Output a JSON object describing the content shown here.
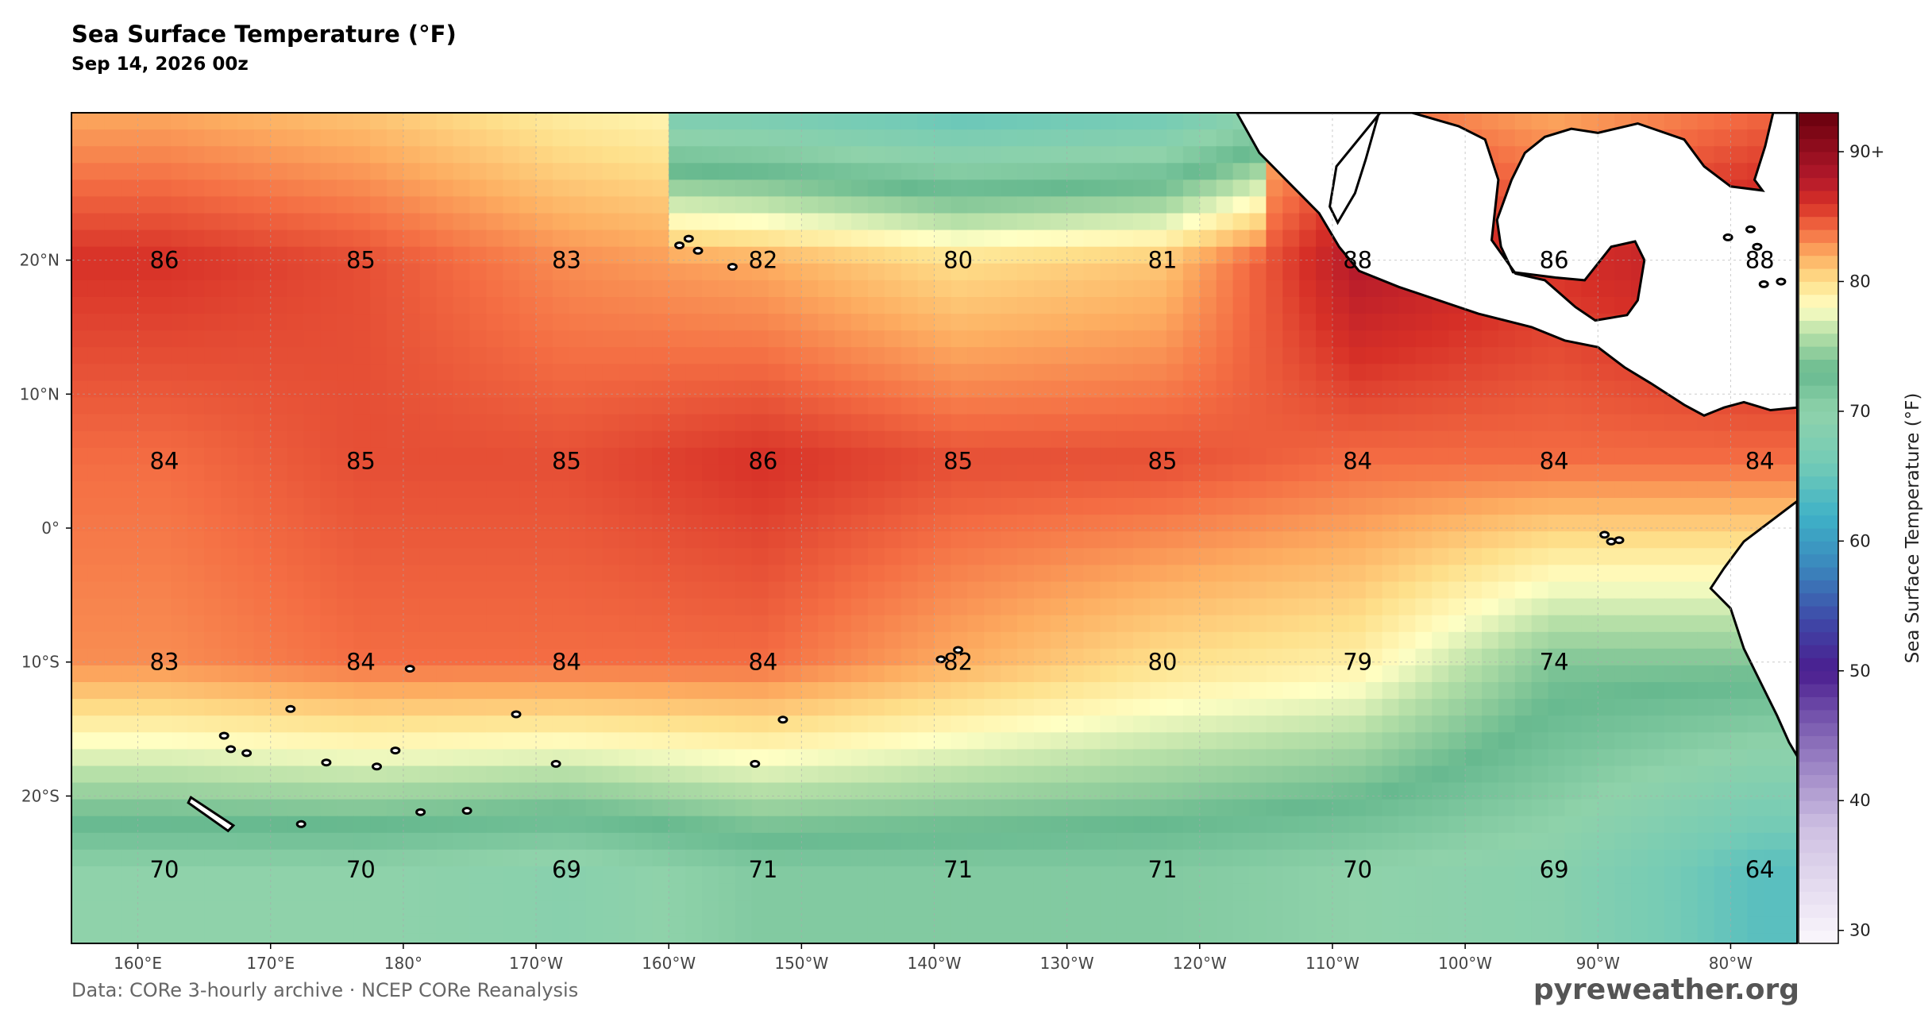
{
  "header": {
    "title": "Sea Surface Temperature (°F)",
    "subtitle": "Sep 14, 2026 00z"
  },
  "footer": {
    "source": "Data: CORe 3-hourly archive  ·  NCEP CORe Reanalysis",
    "brand": "pyreweather.org"
  },
  "map": {
    "projection": "equirectangular",
    "lon_range": [
      155,
      285
    ],
    "lat_range": [
      -31,
      31
    ],
    "lon_ticks": [
      {
        "lon": 160,
        "label": "160°E"
      },
      {
        "lon": 170,
        "label": "170°E"
      },
      {
        "lon": 180,
        "label": "180°"
      },
      {
        "lon": 190,
        "label": "170°W"
      },
      {
        "lon": 200,
        "label": "160°W"
      },
      {
        "lon": 210,
        "label": "150°W"
      },
      {
        "lon": 220,
        "label": "140°W"
      },
      {
        "lon": 230,
        "label": "130°W"
      },
      {
        "lon": 240,
        "label": "120°W"
      },
      {
        "lon": 250,
        "label": "110°W"
      },
      {
        "lon": 260,
        "label": "100°W"
      },
      {
        "lon": 270,
        "label": "90°W"
      },
      {
        "lon": 280,
        "label": "80°W"
      }
    ],
    "lat_ticks": [
      {
        "lat": 20,
        "label": "20°N"
      },
      {
        "lat": 10,
        "label": "10°N"
      },
      {
        "lat": 0,
        "label": "0°"
      },
      {
        "lat": -10,
        "label": "10°S"
      },
      {
        "lat": -20,
        "label": "20°S"
      }
    ],
    "grid": true,
    "value_rows": [
      {
        "lat": 20,
        "values": [
          "86",
          "85",
          "83",
          "82",
          "80",
          "81",
          "88",
          "86",
          "88"
        ]
      },
      {
        "lat": 5,
        "values": [
          "84",
          "85",
          "85",
          "86",
          "85",
          "85",
          "84",
          "84",
          "84"
        ]
      },
      {
        "lat": -10,
        "values": [
          "83",
          "84",
          "84",
          "84",
          "82",
          "80",
          "79",
          "74",
          ""
        ]
      },
      {
        "lat": -25.5,
        "values": [
          "70",
          "70",
          "69",
          "71",
          "71",
          "71",
          "70",
          "69",
          "64"
        ]
      }
    ],
    "value_lons": [
      162,
      176.8,
      192.3,
      207.1,
      221.8,
      237.2,
      251.9,
      266.7,
      282.2
    ],
    "land_color": "#ffffff",
    "coast_color": "#000000"
  },
  "colorbar": {
    "label": "Sea Surface Temperature (°F)",
    "min": 29,
    "max": 93,
    "ticks": [
      {
        "value": 30,
        "label": "30"
      },
      {
        "value": 40,
        "label": "40"
      },
      {
        "value": 50,
        "label": "50"
      },
      {
        "value": 60,
        "label": "60"
      },
      {
        "value": 70,
        "label": "70"
      },
      {
        "value": 80,
        "label": "80"
      },
      {
        "value": 90,
        "label": "90+"
      }
    ],
    "stops": [
      {
        "t": 29,
        "color": "#fbf7fc"
      },
      {
        "t": 38,
        "color": "#cdbfe2"
      },
      {
        "t": 46,
        "color": "#7a5bb0"
      },
      {
        "t": 50,
        "color": "#4a1d8f"
      },
      {
        "t": 54,
        "color": "#3f4aa8"
      },
      {
        "t": 58,
        "color": "#3a86bd"
      },
      {
        "t": 62,
        "color": "#3fb2c7"
      },
      {
        "t": 66,
        "color": "#74cbb6"
      },
      {
        "t": 70,
        "color": "#8fd2aa"
      },
      {
        "t": 73,
        "color": "#67b98f"
      },
      {
        "t": 76,
        "color": "#b7e0a8"
      },
      {
        "t": 78,
        "color": "#ffffc4"
      },
      {
        "t": 80,
        "color": "#fee08b"
      },
      {
        "t": 82,
        "color": "#fdae61"
      },
      {
        "t": 84,
        "color": "#f46d43"
      },
      {
        "t": 86,
        "color": "#d73027"
      },
      {
        "t": 88,
        "color": "#b2182b"
      },
      {
        "t": 93,
        "color": "#67000d"
      }
    ]
  },
  "regions": [
    {
      "kind": "band",
      "lat_top": -12.5,
      "lat_bot": -15,
      "lon0": 155,
      "lon1": 285,
      "temp": 81
    },
    {
      "kind": "band",
      "lat_top": -15,
      "lat_bot": -18,
      "lon0": 155,
      "lon1": 285,
      "temp": 78
    },
    {
      "kind": "band",
      "lat_top": -18,
      "lat_bot": -22,
      "lon0": 155,
      "lon1": 285,
      "temp": 74
    },
    {
      "kind": "band",
      "lat_top": -22,
      "lat_bot": -31,
      "lon0": 155,
      "lon1": 285,
      "temp": 70
    }
  ]
}
